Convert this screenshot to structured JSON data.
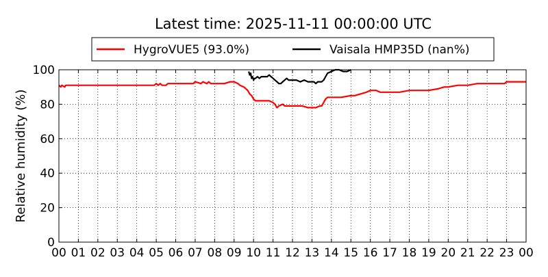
{
  "chart_data": {
    "type": "line",
    "title": "Latest time: 2025-11-11 00:00:00 UTC",
    "xlabel": "",
    "ylabel": "Relative humidity (%)",
    "xlim": [
      0,
      24
    ],
    "ylim": [
      0,
      100
    ],
    "x_ticks": [
      0,
      1,
      2,
      3,
      4,
      5,
      6,
      7,
      8,
      9,
      10,
      11,
      12,
      13,
      14,
      15,
      16,
      17,
      18,
      19,
      20,
      21,
      22,
      23,
      24
    ],
    "x_tick_labels": [
      "00",
      "01",
      "02",
      "03",
      "04",
      "05",
      "06",
      "07",
      "08",
      "09",
      "10",
      "11",
      "12",
      "13",
      "14",
      "15",
      "16",
      "17",
      "18",
      "19",
      "20",
      "21",
      "22",
      "23",
      "00"
    ],
    "y_ticks": [
      0,
      20,
      40,
      60,
      80,
      100
    ],
    "y_tick_labels": [
      "0",
      "20",
      "40",
      "60",
      "80",
      "100"
    ],
    "grid": true,
    "legend_position": "top-center-outside",
    "series": [
      {
        "name": "HygroVUE5 (93.0%)",
        "color": "#ff0000",
        "x": [
          0.0,
          0.1,
          0.15,
          0.3,
          0.35,
          0.5,
          1.0,
          2.0,
          3.0,
          4.0,
          4.9,
          5.0,
          5.1,
          5.2,
          5.3,
          5.5,
          5.6,
          6.0,
          6.5,
          6.9,
          7.0,
          7.3,
          7.4,
          7.6,
          7.7,
          7.8,
          8.0,
          8.5,
          8.8,
          9.0,
          9.2,
          9.3,
          9.5,
          9.7,
          9.8,
          9.9,
          10.0,
          10.1,
          10.2,
          10.5,
          10.8,
          11.0,
          11.1,
          11.2,
          11.3,
          11.5,
          11.6,
          11.8,
          12.0,
          12.3,
          12.5,
          12.8,
          13.0,
          13.2,
          13.4,
          13.5,
          13.6,
          13.7,
          13.8,
          14.0,
          14.2,
          14.5,
          15.0,
          15.2,
          15.5,
          15.8,
          16.0,
          16.3,
          16.5,
          17.0,
          17.5,
          18.0,
          18.5,
          19.0,
          19.5,
          19.8,
          20.0,
          20.5,
          20.9,
          21.0,
          21.5,
          22.0,
          22.5,
          22.9,
          23.0,
          23.5,
          24.0
        ],
        "values": [
          91,
          90,
          91,
          90,
          91,
          91,
          91,
          91,
          91,
          91,
          91,
          92,
          91,
          92,
          91,
          91,
          92,
          92,
          92,
          92,
          93,
          92,
          93,
          92,
          93,
          92,
          92,
          92,
          93,
          93,
          92,
          91,
          90,
          88,
          86,
          85,
          83,
          82,
          82,
          82,
          82,
          81,
          80,
          78,
          79,
          80,
          79,
          79,
          79,
          79,
          79,
          78,
          78,
          78,
          79,
          79,
          81,
          83,
          84,
          84,
          84,
          84,
          85,
          85,
          86,
          87,
          88,
          88,
          87,
          87,
          87,
          88,
          88,
          88,
          89,
          90,
          90,
          91,
          91,
          91,
          92,
          92,
          92,
          92,
          93,
          93,
          93
        ]
      },
      {
        "name": "Vaisala HMP35D (nan%)",
        "color": "#000000",
        "x": [
          9.75,
          9.8,
          9.85,
          9.9,
          9.95,
          10.0,
          10.05,
          10.1,
          10.2,
          10.3,
          10.4,
          10.5,
          10.6,
          10.7,
          10.8,
          10.9,
          11.0,
          11.1,
          11.2,
          11.3,
          11.4,
          11.5,
          11.6,
          11.7,
          11.8,
          11.9,
          12.0,
          12.2,
          12.4,
          12.6,
          12.8,
          13.0,
          13.1,
          13.2,
          13.3,
          13.4,
          13.5,
          13.6,
          13.7,
          13.8,
          14.0,
          14.2,
          14.4,
          14.6,
          14.8,
          15.0
        ],
        "values": [
          99,
          97,
          98,
          95,
          96,
          94,
          95,
          95,
          96,
          95,
          96,
          96,
          96,
          96,
          97,
          96,
          95,
          94,
          93,
          92,
          92,
          93,
          94,
          95,
          94,
          94,
          94,
          94,
          93,
          94,
          93,
          93,
          93,
          92,
          93,
          93,
          93,
          94,
          96,
          98,
          99,
          100,
          100,
          99,
          99,
          100
        ]
      }
    ]
  }
}
